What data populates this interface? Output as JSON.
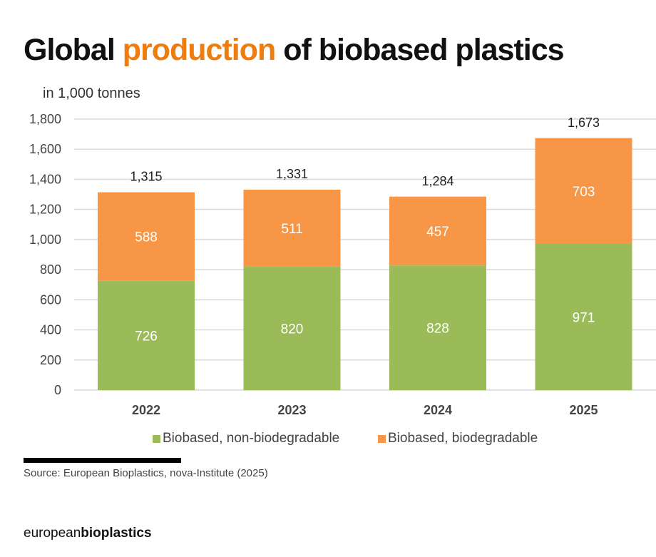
{
  "title": {
    "prefix": "Global ",
    "highlight": "production",
    "suffix": " of biobased plastics"
  },
  "unit_label": "in 1,000 tonnes",
  "colors": {
    "highlight": "#ee7d11",
    "green": "#9bbb59",
    "orange": "#f79646",
    "grid": "#d9d9d9"
  },
  "chart_data": {
    "type": "bar",
    "stacked": true,
    "title": "Global production of biobased plastics",
    "ylabel": "in 1,000 tonnes",
    "xlabel": "",
    "ylim": [
      0,
      1800
    ],
    "yticks": [
      0,
      200,
      400,
      600,
      800,
      1000,
      1200,
      1400,
      1600,
      1800
    ],
    "ytick_labels": [
      "0",
      "200",
      "400",
      "600",
      "800",
      "1,000",
      "1,200",
      "1,400",
      "1,600",
      "1,800"
    ],
    "grid": true,
    "categories": [
      "2022",
      "2023",
      "2024",
      "2025"
    ],
    "series": [
      {
        "name": "Biobased, non-biodegradable",
        "color": "#9bbb59",
        "values": [
          726,
          820,
          828,
          971
        ],
        "labels": [
          "726",
          "820",
          "828",
          "971"
        ]
      },
      {
        "name": "Biobased, biodegradable",
        "color": "#f79646",
        "values": [
          588,
          511,
          457,
          703
        ],
        "labels": [
          "588",
          "511",
          "457",
          "703"
        ]
      }
    ],
    "totals": [
      1315,
      1331,
      1284,
      1673
    ],
    "total_labels": [
      "1,315",
      "1,331",
      "1,284",
      "1,673"
    ],
    "legend": "bottom"
  },
  "legend": {
    "items": [
      "Biobased, non-biodegradable",
      "Biobased, biodegradable"
    ]
  },
  "source": "Source: European Bioplastics, nova-Institute (2025)",
  "logo": {
    "regular": "european",
    "bold": "bioplastics"
  }
}
